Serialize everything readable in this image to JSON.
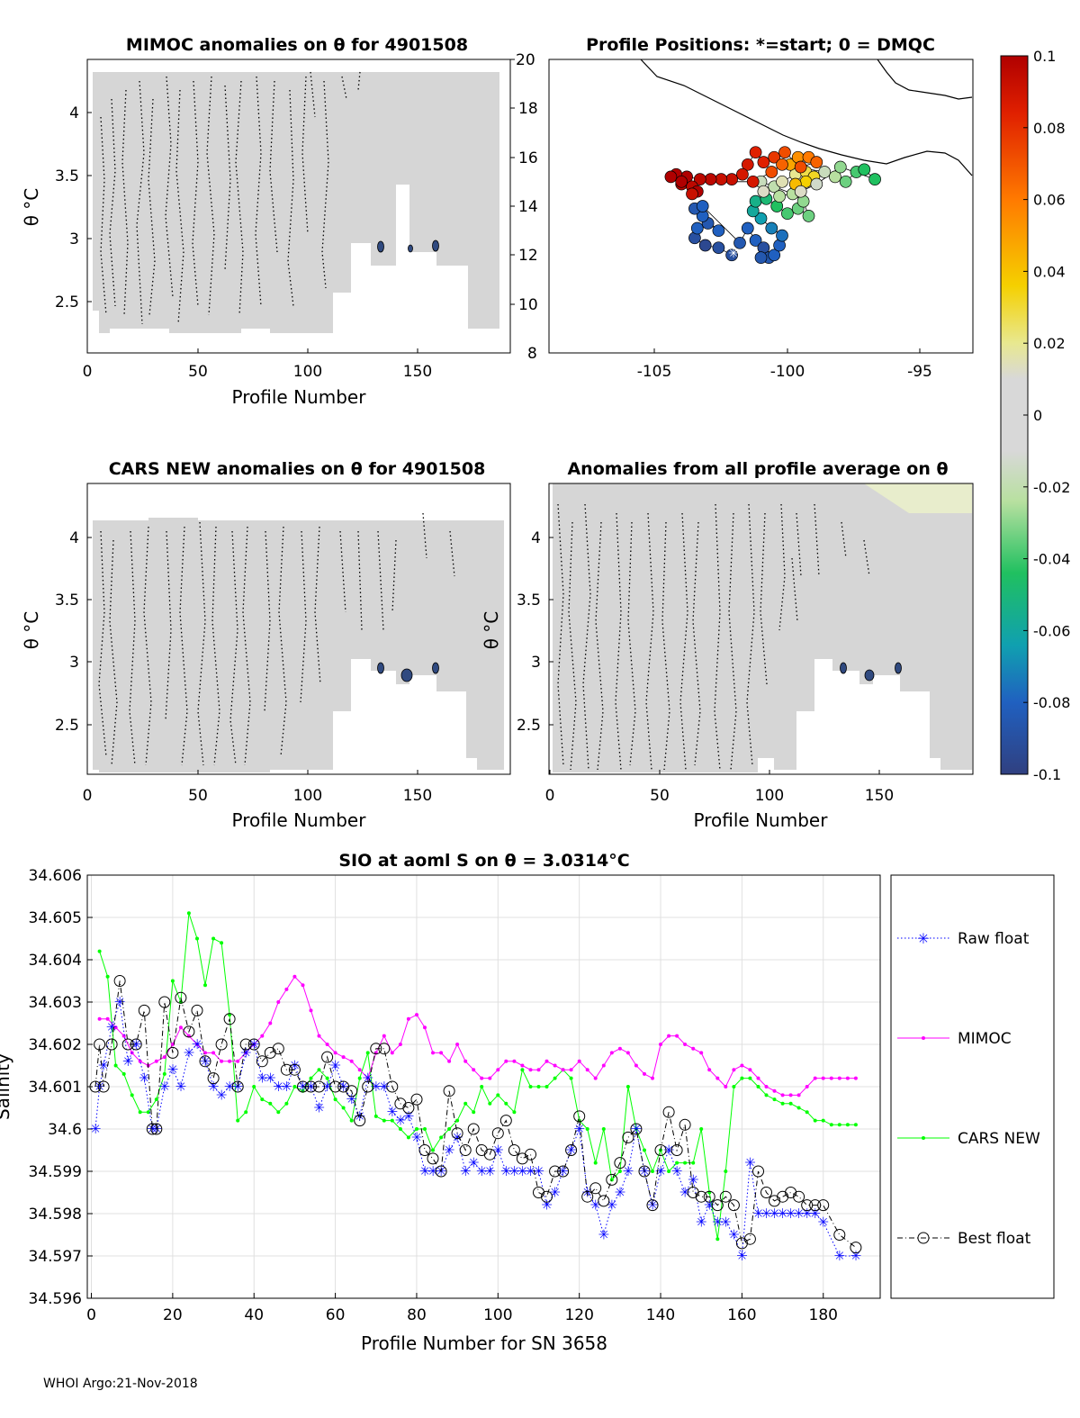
{
  "footer": "WHOI Argo:21-Nov-2018",
  "colorbar": {
    "ticks": [
      "0.1",
      "0.08",
      "0.06",
      "0.04",
      "0.02",
      "0",
      "-0.02",
      "-0.04",
      "-0.06",
      "-0.08",
      "-0.1"
    ],
    "range": [
      -0.1,
      0.1
    ]
  },
  "panels": {
    "mimoc": {
      "title": "MIMOC anomalies on θ  for 4901508",
      "xlabel": "Profile Number",
      "ylabel": "θ °C",
      "xticks": [
        "0",
        "50",
        "100",
        "150"
      ],
      "yticks": [
        "4",
        "3.5",
        "3",
        "2.5"
      ]
    },
    "positions": {
      "title": "Profile Positions: *=start; 0 = DMQC",
      "xticks": [
        "-105",
        "-100",
        "-95"
      ],
      "yticks": [
        "20",
        "18",
        "16",
        "14",
        "12",
        "10",
        "8"
      ]
    },
    "cars": {
      "title": "CARS NEW anomalies on θ for 4901508",
      "xlabel": "Profile Number",
      "ylabel": "θ °C",
      "xticks": [
        "0",
        "50",
        "100",
        "150"
      ],
      "yticks": [
        "4",
        "3.5",
        "3",
        "2.5"
      ]
    },
    "allavg": {
      "title": "Anomalies from all profile average on θ",
      "xlabel": "Profile Number",
      "ylabel": "θ °C",
      "xticks": [
        "0",
        "50",
        "100",
        "150"
      ],
      "yticks": [
        "4",
        "3.5",
        "3",
        "2.5"
      ]
    }
  },
  "chart_data": {
    "type": "line",
    "title": "SIO at aoml S on θ = 3.0314°C",
    "xlabel": "Profile Number for SN 3658",
    "ylabel": "Salinity",
    "xlim": [
      -1,
      194
    ],
    "ylim": [
      34.596,
      34.606
    ],
    "xticks": [
      "0",
      "20",
      "40",
      "60",
      "80",
      "100",
      "120",
      "140",
      "160",
      "180"
    ],
    "yticks": [
      "34.606",
      "34.605",
      "34.604",
      "34.603",
      "34.602",
      "34.601",
      "34.6",
      "34.599",
      "34.598",
      "34.597",
      "34.596"
    ],
    "legend": [
      "Raw float",
      "MIMOC",
      "CARS NEW",
      "Best float"
    ],
    "series": [
      {
        "name": "Raw float",
        "color": "#0000ff",
        "x": [
          1,
          2,
          3,
          5,
          7,
          9,
          11,
          13,
          15,
          16,
          18,
          20,
          22,
          24,
          26,
          28,
          30,
          32,
          34,
          36,
          38,
          40,
          42,
          44,
          46,
          48,
          50,
          52,
          54,
          56,
          58,
          60,
          62,
          64,
          66,
          68,
          70,
          72,
          74,
          76,
          78,
          80,
          82,
          84,
          86,
          88,
          90,
          92,
          94,
          96,
          98,
          100,
          102,
          104,
          106,
          108,
          110,
          112,
          114,
          116,
          118,
          120,
          122,
          124,
          126,
          128,
          130,
          132,
          134,
          136,
          138,
          140,
          142,
          144,
          146,
          148,
          150,
          152,
          154,
          156,
          158,
          160,
          162,
          164,
          166,
          168,
          170,
          172,
          174,
          176,
          178,
          180,
          184,
          188
        ],
        "y": [
          34.6,
          34.601,
          34.6015,
          34.6024,
          34.603,
          34.6016,
          34.602,
          34.6012,
          34.6,
          34.6,
          34.601,
          34.6014,
          34.601,
          34.6018,
          34.602,
          34.6016,
          34.601,
          34.6008,
          34.601,
          34.601,
          34.6018,
          34.602,
          34.6012,
          34.6012,
          34.601,
          34.601,
          34.6015,
          34.601,
          34.601,
          34.6005,
          34.601,
          34.6015,
          34.601,
          34.6007,
          34.6003,
          34.6012,
          34.601,
          34.601,
          34.6004,
          34.6002,
          34.6003,
          34.5998,
          34.599,
          34.599,
          34.599,
          34.5995,
          34.5998,
          34.599,
          34.5992,
          34.599,
          34.599,
          34.5995,
          34.599,
          34.599,
          34.599,
          34.599,
          34.599,
          34.5982,
          34.5985,
          34.599,
          34.5995,
          34.6,
          34.5985,
          34.5982,
          34.5975,
          34.5982,
          34.5985,
          34.599,
          34.6,
          34.599,
          34.5982,
          34.599,
          34.5995,
          34.599,
          34.5985,
          34.5988,
          34.5978,
          34.5982,
          34.5978,
          34.5978,
          34.5975,
          34.597,
          34.5992,
          34.598,
          34.598,
          34.598,
          34.598,
          34.598,
          34.598,
          34.598,
          34.598,
          34.5978,
          34.597,
          34.597
        ]
      },
      {
        "name": "MIMOC",
        "color": "#ff00ff",
        "x": [
          2,
          4,
          6,
          8,
          10,
          12,
          14,
          16,
          18,
          20,
          22,
          24,
          26,
          28,
          30,
          32,
          34,
          36,
          38,
          40,
          42,
          44,
          46,
          48,
          50,
          52,
          54,
          56,
          58,
          60,
          62,
          64,
          66,
          68,
          70,
          72,
          74,
          76,
          78,
          80,
          82,
          84,
          86,
          88,
          90,
          92,
          94,
          96,
          98,
          100,
          102,
          104,
          106,
          108,
          110,
          112,
          114,
          116,
          118,
          120,
          122,
          124,
          126,
          128,
          130,
          132,
          134,
          136,
          138,
          140,
          142,
          144,
          146,
          148,
          150,
          152,
          154,
          156,
          158,
          160,
          162,
          164,
          166,
          168,
          170,
          172,
          174,
          176,
          178,
          180,
          182,
          184,
          186,
          188
        ],
        "y": [
          34.6026,
          34.6026,
          34.6024,
          34.6022,
          34.6018,
          34.6016,
          34.6015,
          34.6016,
          34.6017,
          34.602,
          34.6024,
          34.6022,
          34.602,
          34.6018,
          34.6018,
          34.6016,
          34.6016,
          34.6016,
          34.6018,
          34.602,
          34.6022,
          34.6025,
          34.603,
          34.6033,
          34.6036,
          34.6034,
          34.6028,
          34.6022,
          34.602,
          34.6018,
          34.6017,
          34.6016,
          34.6014,
          34.6012,
          34.6018,
          34.6022,
          34.6018,
          34.602,
          34.6026,
          34.6027,
          34.6024,
          34.6018,
          34.6018,
          34.6016,
          34.602,
          34.6016,
          34.6014,
          34.6012,
          34.6012,
          34.6014,
          34.6016,
          34.6016,
          34.6015,
          34.6014,
          34.6014,
          34.6016,
          34.6015,
          34.6014,
          34.6014,
          34.6016,
          34.6014,
          34.6012,
          34.6015,
          34.6018,
          34.6019,
          34.6018,
          34.6015,
          34.6013,
          34.6012,
          34.602,
          34.6022,
          34.6022,
          34.602,
          34.6019,
          34.6018,
          34.6014,
          34.6012,
          34.601,
          34.6014,
          34.6015,
          34.6014,
          34.6012,
          34.601,
          34.6009,
          34.6008,
          34.6008,
          34.6008,
          34.601,
          34.6012,
          34.6012,
          34.6012,
          34.6012,
          34.6012,
          34.6012
        ]
      },
      {
        "name": "CARS NEW",
        "color": "#00ff00",
        "x": [
          2,
          4,
          6,
          8,
          10,
          12,
          14,
          16,
          18,
          20,
          22,
          24,
          26,
          28,
          30,
          32,
          34,
          36,
          38,
          40,
          42,
          44,
          46,
          48,
          50,
          52,
          54,
          56,
          58,
          60,
          62,
          64,
          66,
          68,
          70,
          72,
          74,
          76,
          78,
          80,
          82,
          84,
          86,
          88,
          90,
          92,
          94,
          96,
          98,
          100,
          102,
          104,
          106,
          108,
          110,
          112,
          114,
          116,
          118,
          120,
          122,
          124,
          126,
          128,
          130,
          132,
          134,
          136,
          138,
          140,
          142,
          144,
          146,
          148,
          150,
          152,
          154,
          156,
          158,
          160,
          162,
          164,
          166,
          168,
          170,
          172,
          174,
          176,
          178,
          180,
          182,
          184,
          186,
          188
        ],
        "y": [
          34.6042,
          34.6036,
          34.6015,
          34.6013,
          34.6008,
          34.6004,
          34.6004,
          34.6007,
          34.6013,
          34.6035,
          34.603,
          34.6051,
          34.6045,
          34.6034,
          34.6045,
          34.6044,
          34.6027,
          34.6002,
          34.6004,
          34.601,
          34.6007,
          34.6006,
          34.6004,
          34.6006,
          34.601,
          34.6009,
          34.6012,
          34.6014,
          34.6012,
          34.6007,
          34.6005,
          34.6002,
          34.6012,
          34.6018,
          34.6003,
          34.6002,
          34.6002,
          34.6,
          34.5998,
          34.6,
          34.6,
          34.5995,
          34.5998,
          34.6,
          34.6002,
          34.6006,
          34.6004,
          34.601,
          34.6006,
          34.6008,
          34.6006,
          34.6004,
          34.6014,
          34.601,
          34.601,
          34.601,
          34.6012,
          34.6014,
          34.6012,
          34.6002,
          34.6,
          34.5992,
          34.6,
          34.5988,
          34.599,
          34.601,
          34.6,
          34.5995,
          34.599,
          34.5995,
          34.599,
          34.5992,
          34.5992,
          34.5992,
          34.6,
          34.5985,
          34.5974,
          34.599,
          34.601,
          34.6012,
          34.6012,
          34.601,
          34.6008,
          34.6007,
          34.6006,
          34.6006,
          34.6005,
          34.6004,
          34.6002,
          34.6002,
          34.6001,
          34.6001,
          34.6001,
          34.6001
        ]
      },
      {
        "name": "Best float",
        "color": "#000000",
        "x": [
          1,
          2,
          3,
          5,
          7,
          9,
          11,
          13,
          15,
          16,
          18,
          20,
          22,
          24,
          26,
          28,
          30,
          32,
          34,
          36,
          38,
          40,
          42,
          44,
          46,
          48,
          50,
          52,
          54,
          56,
          58,
          60,
          62,
          64,
          66,
          68,
          70,
          72,
          74,
          76,
          78,
          80,
          82,
          84,
          86,
          88,
          90,
          92,
          94,
          96,
          98,
          100,
          102,
          104,
          106,
          108,
          110,
          112,
          114,
          116,
          118,
          120,
          122,
          124,
          126,
          128,
          130,
          132,
          134,
          136,
          138,
          140,
          142,
          144,
          146,
          148,
          150,
          152,
          154,
          156,
          158,
          160,
          162,
          164,
          166,
          168,
          170,
          172,
          174,
          176,
          178,
          180,
          184,
          188
        ],
        "y": [
          34.601,
          34.602,
          34.601,
          34.602,
          34.6035,
          34.602,
          34.602,
          34.6028,
          34.6,
          34.6,
          34.603,
          34.6018,
          34.6031,
          34.6023,
          34.6028,
          34.6016,
          34.6012,
          34.602,
          34.6026,
          34.601,
          34.602,
          34.602,
          34.6016,
          34.6018,
          34.6019,
          34.6014,
          34.6014,
          34.601,
          34.601,
          34.601,
          34.6017,
          34.601,
          34.601,
          34.6009,
          34.6002,
          34.601,
          34.6019,
          34.6019,
          34.601,
          34.6006,
          34.6005,
          34.6007,
          34.5995,
          34.5993,
          34.599,
          34.6009,
          34.5999,
          34.5995,
          34.6,
          34.5995,
          34.5994,
          34.5999,
          34.6002,
          34.5995,
          34.5993,
          34.5994,
          34.5985,
          34.5984,
          34.599,
          34.599,
          34.5995,
          34.6003,
          34.5984,
          34.5986,
          34.5983,
          34.5988,
          34.5992,
          34.5998,
          34.6,
          34.599,
          34.5982,
          34.5995,
          34.6004,
          34.5995,
          34.6001,
          34.5985,
          34.5984,
          34.5984,
          34.5982,
          34.5984,
          34.5982,
          34.5973,
          34.5974,
          34.599,
          34.5985,
          34.5983,
          34.5984,
          34.5985,
          34.5984,
          34.5982,
          34.5982,
          34.5982,
          34.5975,
          34.5972
        ]
      }
    ]
  }
}
